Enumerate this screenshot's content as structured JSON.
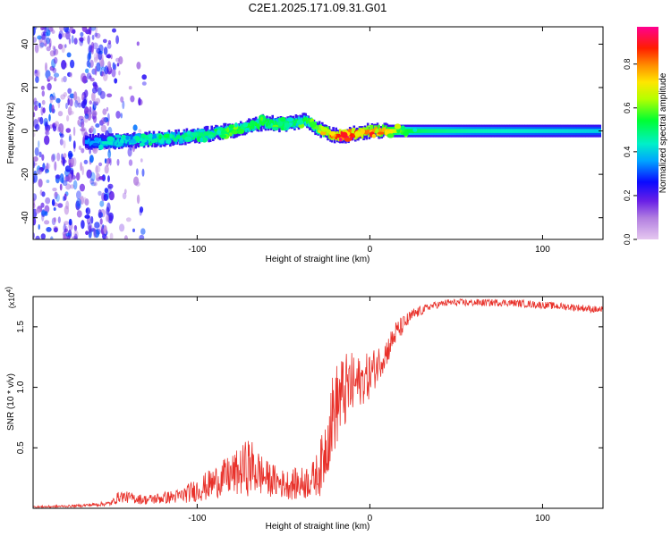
{
  "title": "C2E1.2025.171.09.31.G01",
  "chart_data": [
    {
      "type": "heatmap",
      "title": "",
      "xlabel": "Height of straight line (km)",
      "ylabel": "Frequency (Hz)",
      "xlim": [
        -195,
        135
      ],
      "ylim": [
        -50,
        48
      ],
      "x_ticks": [
        -100,
        0,
        100
      ],
      "y_ticks": [
        -40,
        -20,
        0,
        20,
        40
      ],
      "grid": false,
      "colorbar": {
        "label": "Normalized spectral amplitude",
        "range": [
          0,
          0.97
        ],
        "ticks": [
          0.0,
          0.2,
          0.4,
          0.6,
          0.8
        ],
        "colormap": [
          "#e6c8f0",
          "#8a2be2",
          "#0000ff",
          "#00c8ff",
          "#00ff64",
          "#ffff00",
          "#ff8c00",
          "#ff0000",
          "#ff007f"
        ]
      },
      "ridge": {
        "x": [
          -165,
          -150,
          -130,
          -110,
          -90,
          -75,
          -62,
          -50,
          -38,
          -30,
          -22,
          -15,
          -8,
          0,
          10,
          20,
          30,
          60,
          100,
          133
        ],
        "frequency": [
          -5,
          -5,
          -4,
          -3,
          -1,
          1,
          4,
          3,
          5,
          1,
          -2,
          -2,
          -1,
          0,
          0,
          0,
          0,
          0,
          0,
          0
        ],
        "amplitude": [
          0.35,
          0.4,
          0.45,
          0.5,
          0.5,
          0.55,
          0.55,
          0.5,
          0.55,
          0.6,
          0.85,
          0.9,
          0.85,
          0.8,
          0.75,
          0.55,
          0.5,
          0.45,
          0.42,
          0.4
        ]
      },
      "noise_region": {
        "x_range": [
          -195,
          -130
        ],
        "amplitude": 0.15
      }
    },
    {
      "type": "line",
      "title": "",
      "xlabel": "Height of straight line (km)",
      "ylabel": "SNR (10 * v/v)",
      "y_multiplier": "(x10⁴)",
      "y_exponent": "4",
      "xlim": [
        -195,
        135
      ],
      "ylim": [
        0,
        1.75
      ],
      "x_ticks": [
        -100,
        0,
        100
      ],
      "y_ticks": [
        0.5,
        1.0,
        1.5
      ],
      "grid": false,
      "color": "#e8312a",
      "series": [
        {
          "x": [
            -195,
            -170,
            -150,
            -145,
            -130,
            -110,
            -95,
            -85,
            -75,
            -70,
            -60,
            -50,
            -40,
            -32,
            -28,
            -25,
            -22,
            -18,
            -12,
            -5,
            0,
            5,
            10,
            15,
            25,
            35,
            45,
            60,
            80,
            100,
            120,
            133
          ],
          "values": [
            0.01,
            0.02,
            0.04,
            0.1,
            0.07,
            0.1,
            0.18,
            0.25,
            0.3,
            0.35,
            0.25,
            0.2,
            0.2,
            0.25,
            0.35,
            0.55,
            0.75,
            0.9,
            1.0,
            1.05,
            1.1,
            1.2,
            1.3,
            1.45,
            1.6,
            1.67,
            1.7,
            1.7,
            1.7,
            1.68,
            1.66,
            1.64
          ],
          "noise": [
            0.01,
            0.01,
            0.02,
            0.05,
            0.04,
            0.06,
            0.12,
            0.15,
            0.2,
            0.25,
            0.15,
            0.12,
            0.14,
            0.15,
            0.25,
            0.3,
            0.35,
            0.35,
            0.3,
            0.2,
            0.2,
            0.15,
            0.12,
            0.1,
            0.05,
            0.03,
            0.03,
            0.03,
            0.03,
            0.03,
            0.03,
            0.03
          ]
        }
      ]
    }
  ]
}
